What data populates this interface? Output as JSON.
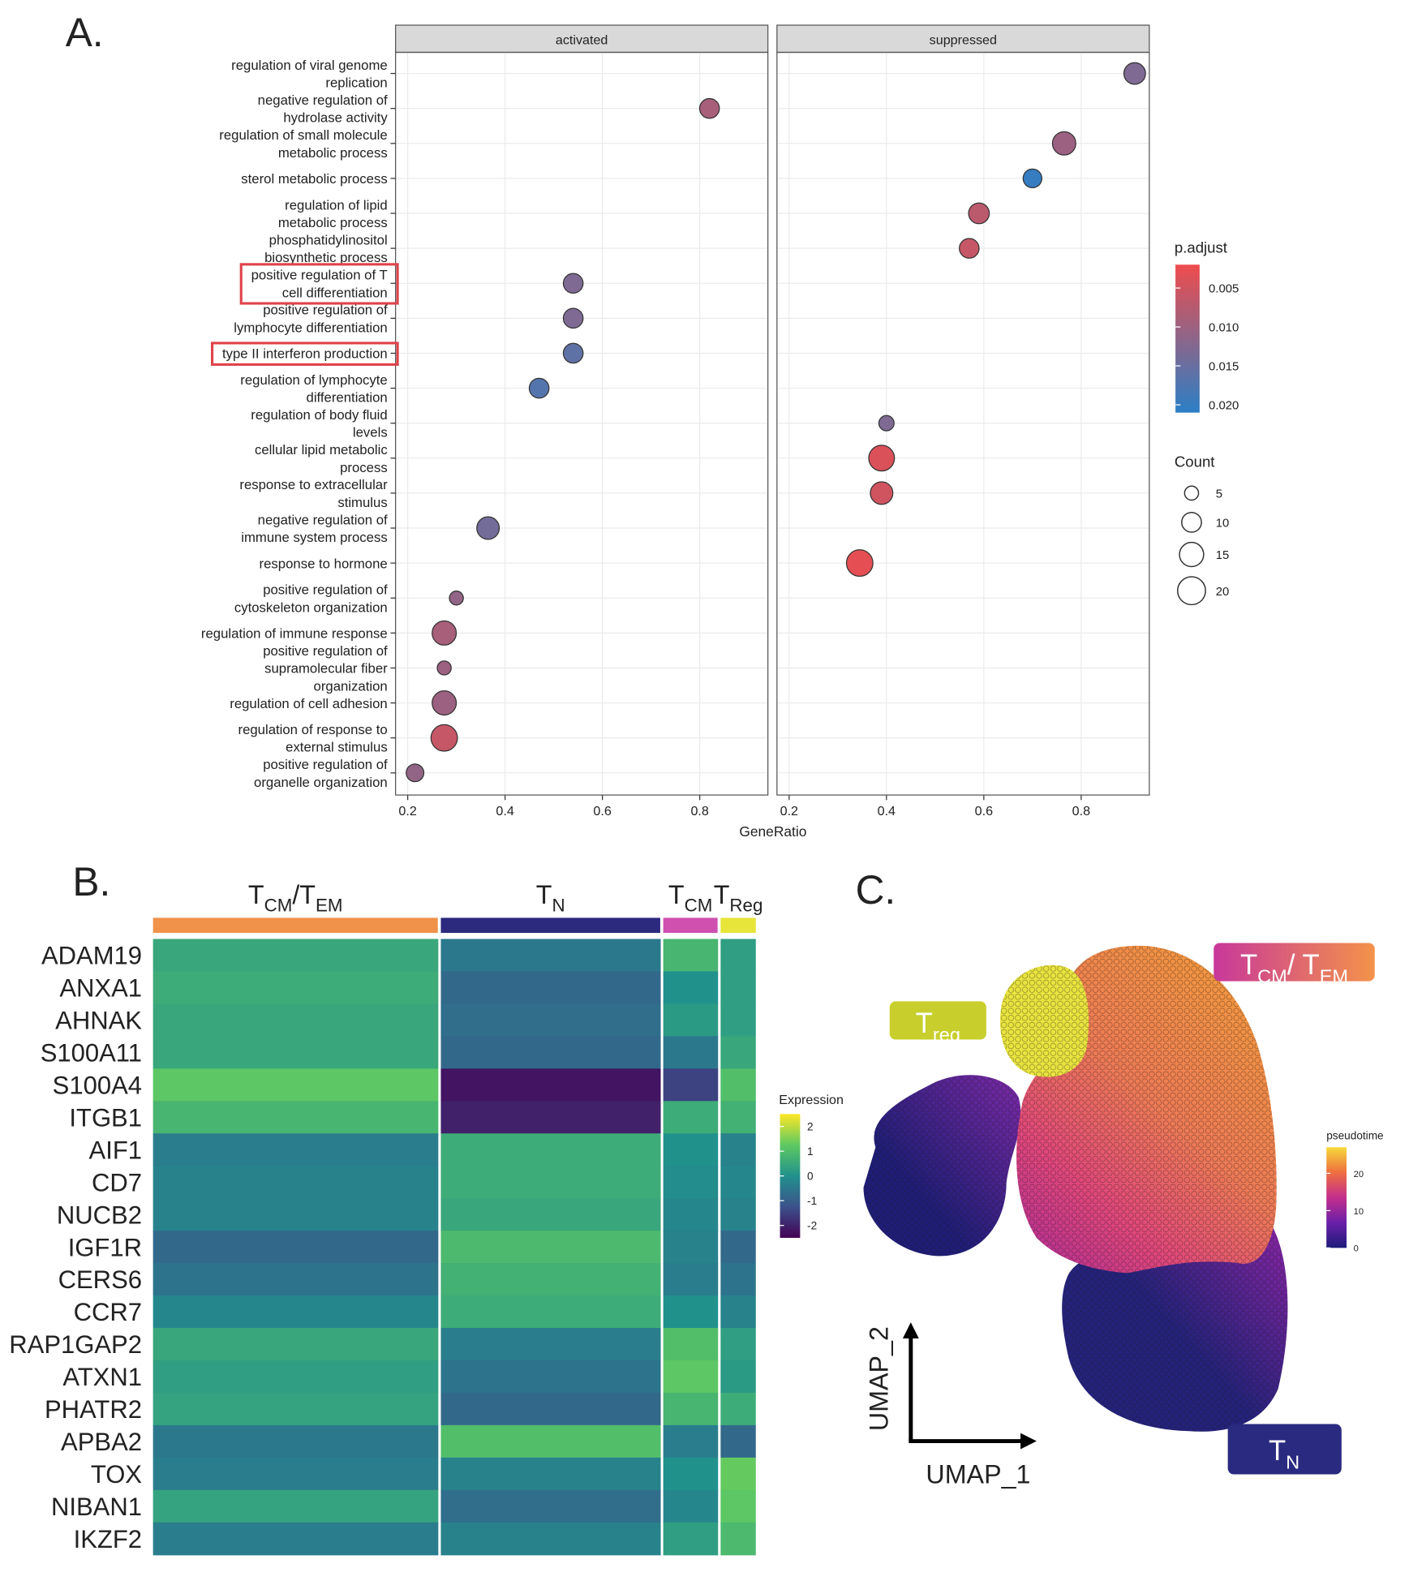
{
  "panel_labels": [
    "A.",
    "B.",
    "C."
  ],
  "chart_data": [
    {
      "type": "dot",
      "categories": [
        [
          "regulation of viral genome",
          "replication"
        ],
        [
          "negative regulation of",
          "hydrolase activity"
        ],
        [
          "regulation of small molecule",
          "metabolic process"
        ],
        [
          "sterol metabolic process"
        ],
        [
          "regulation of lipid",
          "metabolic process"
        ],
        [
          "phosphatidylinositol",
          "biosynthetic process"
        ],
        [
          "positive regulation of T",
          "cell differentiation"
        ],
        [
          "positive regulation of",
          "lymphocyte differentiation"
        ],
        [
          "type II interferon production"
        ],
        [
          "regulation of lymphocyte",
          "differentiation"
        ],
        [
          "regulation of body fluid",
          "levels"
        ],
        [
          "cellular lipid metabolic",
          "process"
        ],
        [
          "response to extracellular",
          "stimulus"
        ],
        [
          "negative regulation of",
          "immune system process"
        ],
        [
          "response to hormone"
        ],
        [
          "positive regulation of",
          "cytoskeleton organization"
        ],
        [
          "regulation of immune response"
        ],
        [
          "positive regulation of",
          "supramolecular fiber",
          "organization"
        ],
        [
          "regulation of cell adhesion"
        ],
        [
          "regulation of response to",
          "external stimulus"
        ],
        [
          "positive regulation of",
          "organelle organization"
        ]
      ],
      "series": [
        {
          "name": "activated",
          "values": [
            null,
            0.82,
            null,
            null,
            null,
            null,
            0.54,
            0.54,
            0.54,
            0.47,
            null,
            null,
            null,
            0.365,
            null,
            0.3,
            0.275,
            0.275,
            0.275,
            0.275,
            0.215
          ],
          "count": [
            null,
            10,
            null,
            null,
            null,
            null,
            10,
            10,
            10,
            10,
            null,
            null,
            null,
            13,
            null,
            5,
            15,
            5,
            15,
            18,
            8
          ],
          "p_adjust": [
            null,
            0.009,
            null,
            null,
            null,
            null,
            0.013,
            0.013,
            0.016,
            0.017,
            null,
            null,
            null,
            0.014,
            null,
            0.011,
            0.009,
            0.01,
            0.01,
            0.006,
            0.011
          ]
        },
        {
          "name": "suppressed",
          "values": [
            0.91,
            null,
            0.765,
            0.7,
            0.59,
            0.57,
            null,
            null,
            null,
            null,
            0.4,
            0.39,
            0.39,
            null,
            0.345,
            null,
            null,
            null,
            null,
            null,
            null
          ],
          "count": [
            12,
            null,
            14,
            9,
            11,
            10,
            null,
            null,
            null,
            null,
            6,
            17,
            13,
            null,
            18,
            null,
            null,
            null,
            null,
            null,
            null
          ],
          "p_adjust": [
            0.013,
            null,
            0.01,
            0.02,
            0.007,
            0.006,
            null,
            null,
            null,
            null,
            0.013,
            0.004,
            0.005,
            null,
            0.003,
            null,
            null,
            null,
            null,
            null,
            null
          ]
        }
      ],
      "xlabel": "GeneRatio",
      "xlim": [
        0.175,
        0.94
      ],
      "xticks": [
        0.2,
        0.4,
        0.6,
        0.8
      ],
      "grid": true,
      "color_legend": {
        "title": "p.adjust",
        "colors": [
          "#ef4c4d",
          "#2b7fc6"
        ],
        "clim": [
          0.002,
          0.021
        ],
        "ticks": [
          0.005,
          {
            "value": 0.01,
            "label": "0.010"
          },
          0.015,
          {
            "value": 0.02,
            "label": "0.020"
          }
        ]
      },
      "size_legend": {
        "title": "Count",
        "ticks": [
          5,
          10,
          15,
          20
        ]
      }
    },
    {
      "type": "heatmap",
      "rows": [
        "ADAM19",
        "ANXA1",
        "AHNAK",
        "S100A11",
        "S100A4",
        "ITGB1",
        "AIF1",
        "CD7",
        "NUCB2",
        "IGF1R",
        "CERS6",
        "CCR7",
        "RAP1GAP2",
        "ATXN1",
        "PHATR2",
        "APBA2",
        "TOX",
        "NIBAN1",
        "IKZF2"
      ],
      "groups": [
        {
          "label": [
            {
              "text": "T"
            },
            {
              "text": "CM",
              "sub": true
            },
            {
              "text": "/T"
            },
            {
              "text": "EM",
              "sub": true
            }
          ],
          "color": "#f0924a"
        },
        {
          "label": [
            {
              "text": "T"
            },
            {
              "text": "N",
              "sub": true
            }
          ],
          "color": "#2c2a7e"
        },
        {
          "label": [
            {
              "text": "T"
            },
            {
              "text": "CM",
              "sub": true
            }
          ],
          "color": "#d050b0"
        },
        {
          "label": [
            {
              "text": "T"
            },
            {
              "text": "Reg",
              "sub": true
            }
          ],
          "color": "#e7e43a"
        }
      ],
      "values": [
        [
          0.5,
          -0.5,
          0.8,
          0.3
        ],
        [
          0.6,
          -0.8,
          0.0,
          0.3
        ],
        [
          0.5,
          -0.7,
          0.2,
          0.3
        ],
        [
          0.5,
          -0.8,
          -0.5,
          0.5
        ],
        [
          1.2,
          -2.2,
          -1.5,
          1.0
        ],
        [
          0.8,
          -2.0,
          0.6,
          0.7
        ],
        [
          -0.4,
          0.6,
          0.0,
          -0.3
        ],
        [
          -0.3,
          0.6,
          -0.1,
          -0.2
        ],
        [
          -0.3,
          0.5,
          -0.2,
          -0.3
        ],
        [
          -0.8,
          0.9,
          -0.3,
          -0.8
        ],
        [
          -0.6,
          0.7,
          -0.4,
          -0.6
        ],
        [
          -0.2,
          0.6,
          0.0,
          -0.3
        ],
        [
          0.5,
          -0.4,
          1.0,
          0.3
        ],
        [
          0.3,
          -0.6,
          1.2,
          0.2
        ],
        [
          0.4,
          -0.8,
          0.8,
          0.6
        ],
        [
          -0.5,
          1.0,
          -0.4,
          -0.8
        ],
        [
          -0.4,
          -0.3,
          0.0,
          1.3
        ],
        [
          0.4,
          -0.7,
          -0.2,
          1.2
        ],
        [
          -0.4,
          -0.3,
          0.3,
          0.9
        ]
      ],
      "legend_title": "Expression",
      "clim": [
        -2.5,
        2.5
      ],
      "ticks": [
        2,
        1,
        0,
        -1,
        -2
      ],
      "colormap": [
        "#440154",
        "#3b528b",
        "#21918c",
        "#5ec962",
        "#fde725"
      ]
    },
    {
      "type": "umap",
      "xlabel": "UMAP_1",
      "ylabel": "UMAP_2",
      "clusters": [
        {
          "label": [
            {
              "text": "T"
            },
            {
              "text": "reg",
              "sub": true
            }
          ]
        },
        {
          "label": [
            {
              "text": "T"
            },
            {
              "text": "CM",
              "sub": true
            },
            {
              "text": "/ T"
            },
            {
              "text": "EM",
              "sub": true
            }
          ]
        },
        {
          "label": [
            {
              "text": "T"
            },
            {
              "text": "N",
              "sub": true
            }
          ]
        }
      ],
      "legend_title": "pseudotime",
      "clim": [
        0,
        27
      ],
      "ticks": [
        0,
        10,
        20
      ],
      "colormap": [
        "#1c1b7a",
        "#6a1fa8",
        "#c42e8c",
        "#ef6f3f",
        "#f6d93a"
      ]
    }
  ]
}
